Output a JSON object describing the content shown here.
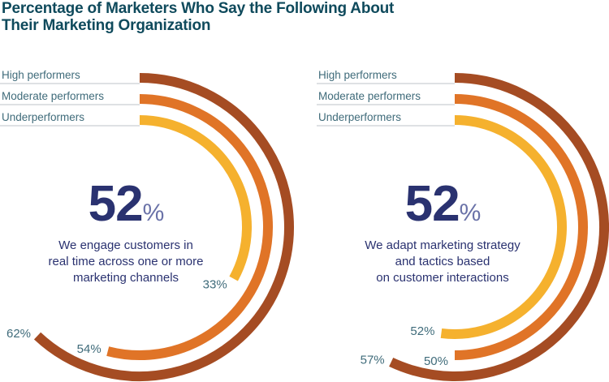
{
  "title_line1": "Percentage of Marketers Who Say the Following About",
  "title_line2": "Their Marketing Organization",
  "chart_data": [
    {
      "type": "radial-bar",
      "headline_value": "52",
      "headline_unit": "%",
      "description": [
        "We engage customers in",
        "real time across one or more",
        "marketing channels"
      ],
      "categories": [
        "High performers",
        "Moderate performers",
        "Underperformers"
      ],
      "values": [
        62,
        54,
        33
      ],
      "value_labels": [
        "62%",
        "54%",
        "33%"
      ],
      "colors": [
        "#a54c23",
        "#e07427",
        "#f5b12e"
      ]
    },
    {
      "type": "radial-bar",
      "headline_value": "52",
      "headline_unit": "%",
      "description": [
        "We adapt marketing strategy",
        "and tactics based",
        "on customer interactions"
      ],
      "categories": [
        "High performers",
        "Moderate performers",
        "Underperformers"
      ],
      "values": [
        57,
        50,
        52
      ],
      "value_labels": [
        "57%",
        "50%",
        "52%"
      ],
      "colors": [
        "#a54c23",
        "#e07427",
        "#f5b12e"
      ]
    }
  ]
}
